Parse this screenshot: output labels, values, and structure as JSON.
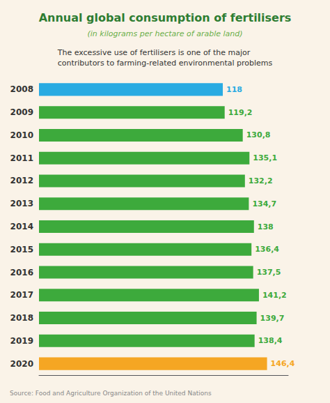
{
  "chart_data": {
    "type": "bar",
    "orientation": "horizontal",
    "title": "Annual global consumption of fertilisers",
    "subtitle": "(in kilograms per hectare of arable land)",
    "annotations": [
      "The excessive use of fertilisers is one of the major\ncontributors to farming-related environmental problems",
      "Source: Food and Agriculture Organization of the United Nations"
    ],
    "categories": [
      "2008",
      "2009",
      "2010",
      "2011",
      "2012",
      "2013",
      "2014",
      "2015",
      "2016",
      "2017",
      "2018",
      "2019",
      "2020"
    ],
    "values": [
      118,
      119.2,
      130.8,
      135.1,
      132.2,
      134.7,
      138,
      136.4,
      137.5,
      141.2,
      139.7,
      138.4,
      146.4
    ],
    "value_labels": [
      "118",
      "119,2",
      "130,8",
      "135,1",
      "132,2",
      "134,7",
      "138",
      "136,4",
      "137,5",
      "141,2",
      "139,7",
      "138,4",
      "146,4"
    ],
    "colors": [
      "#29ABE2",
      "#3DAA3C",
      "#3DAA3C",
      "#3DAA3C",
      "#3DAA3C",
      "#3DAA3C",
      "#3DAA3C",
      "#3DAA3C",
      "#3DAA3C",
      "#3DAA3C",
      "#3DAA3C",
      "#3DAA3C",
      "#F5A623"
    ],
    "xlim": [
      0,
      160
    ],
    "data_labels": true,
    "tick_labels": "y",
    "grid": false
  }
}
